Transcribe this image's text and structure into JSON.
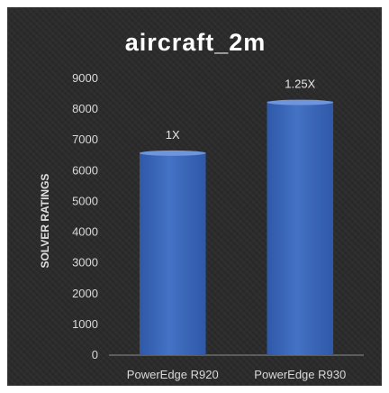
{
  "chart_data": {
    "type": "bar",
    "title": "aircraft_2m",
    "xlabel": "",
    "ylabel": "SOLVER RATINGS",
    "categories": [
      "PowerEdge R920",
      "PowerEdge R930"
    ],
    "values": [
      6600,
      8250
    ],
    "data_labels": [
      "1X",
      "1.25X"
    ],
    "ylim": [
      0,
      9000
    ],
    "yticks": [
      0,
      1000,
      2000,
      3000,
      4000,
      5000,
      6000,
      7000,
      8000,
      9000
    ],
    "grid": false,
    "legend": "none",
    "colors": {
      "bar": "#4472c4",
      "bar_top": "#6f95dd",
      "bar_dark": "#2f58a8",
      "background": "#2b2b2b",
      "text": "#d9d9d9",
      "axis": "#8c8c8c"
    }
  }
}
